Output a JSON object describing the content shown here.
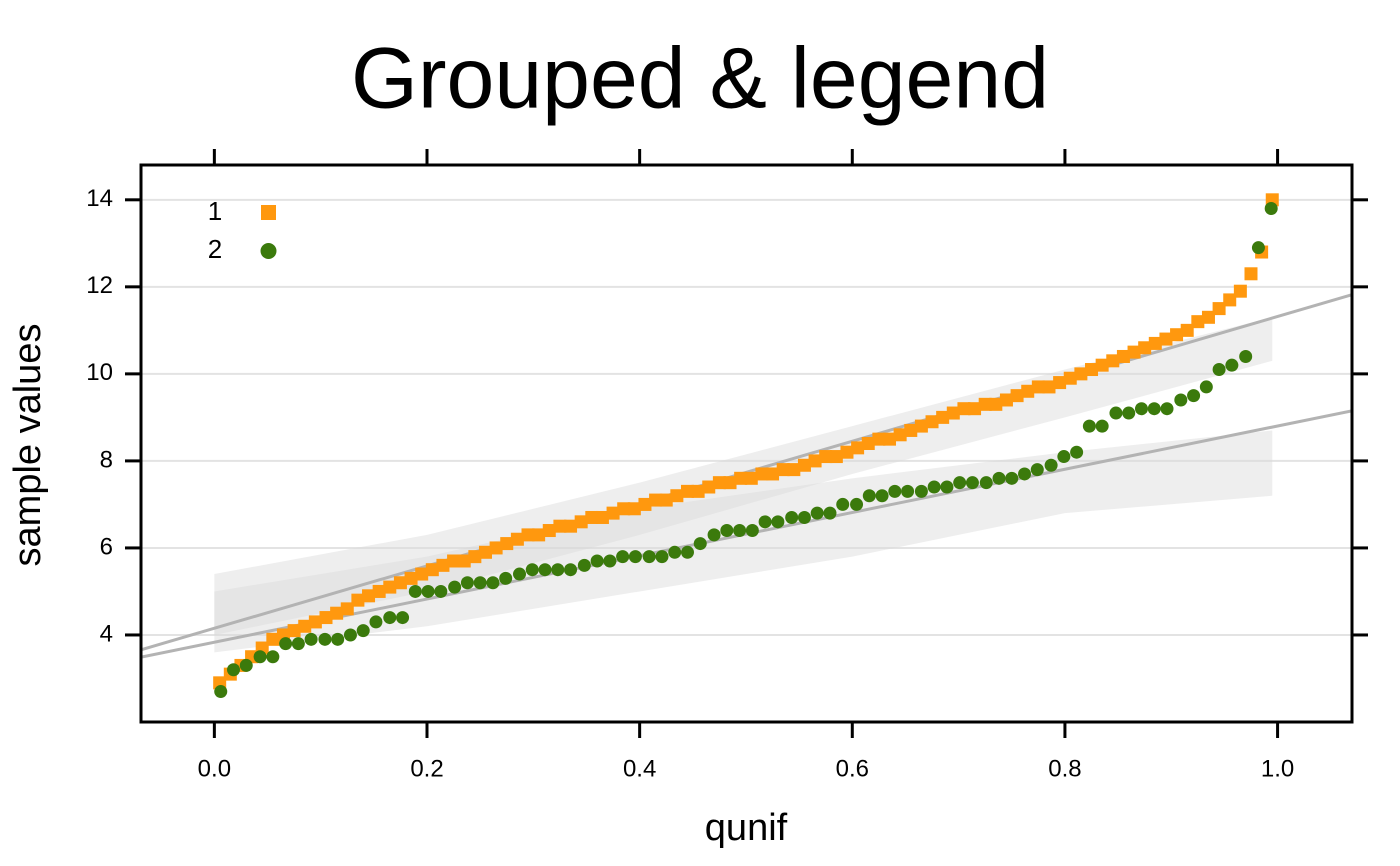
{
  "chart_data": {
    "type": "scatter",
    "title": "Grouped & legend",
    "x_label": "qunif",
    "y_label": "sample values",
    "xlim": [
      -0.069,
      1.07
    ],
    "ylim": [
      2,
      14.8
    ],
    "xticks": [
      {
        "value": 0,
        "label": "0.0"
      },
      0.2,
      0.4,
      0.6,
      0.8,
      {
        "value": 1,
        "label": "1.0"
      }
    ],
    "yticks": [
      4,
      6,
      8,
      10,
      12,
      14
    ],
    "grid": true,
    "legend": "top-left",
    "series": [
      {
        "name": "1",
        "color": "#ff980e",
        "marker": "square",
        "x": [
          0.005,
          0.015,
          0.025,
          0.035,
          0.045,
          0.055,
          0.065,
          0.075,
          0.085,
          0.095,
          0.105,
          0.115,
          0.125,
          0.135,
          0.145,
          0.155,
          0.165,
          0.175,
          0.185,
          0.195,
          0.205,
          0.215,
          0.225,
          0.235,
          0.245,
          0.255,
          0.265,
          0.275,
          0.285,
          0.295,
          0.305,
          0.315,
          0.325,
          0.335,
          0.345,
          0.355,
          0.365,
          0.375,
          0.385,
          0.395,
          0.405,
          0.415,
          0.425,
          0.435,
          0.445,
          0.455,
          0.465,
          0.475,
          0.485,
          0.495,
          0.505,
          0.515,
          0.525,
          0.535,
          0.545,
          0.555,
          0.565,
          0.575,
          0.585,
          0.595,
          0.605,
          0.615,
          0.625,
          0.635,
          0.645,
          0.655,
          0.665,
          0.675,
          0.685,
          0.695,
          0.705,
          0.715,
          0.725,
          0.735,
          0.745,
          0.755,
          0.765,
          0.775,
          0.785,
          0.795,
          0.805,
          0.815,
          0.825,
          0.835,
          0.845,
          0.855,
          0.865,
          0.875,
          0.885,
          0.895,
          0.905,
          0.915,
          0.925,
          0.935,
          0.945,
          0.955,
          0.965,
          0.975,
          0.985,
          0.995
        ],
        "values": [
          2.9,
          3.1,
          3.3,
          3.5,
          3.7,
          3.9,
          4.0,
          4.1,
          4.2,
          4.3,
          4.4,
          4.5,
          4.6,
          4.8,
          4.9,
          5.0,
          5.1,
          5.2,
          5.3,
          5.4,
          5.5,
          5.6,
          5.7,
          5.7,
          5.8,
          5.9,
          6.0,
          6.1,
          6.2,
          6.3,
          6.3,
          6.4,
          6.5,
          6.5,
          6.6,
          6.7,
          6.7,
          6.8,
          6.9,
          6.9,
          7.0,
          7.1,
          7.1,
          7.2,
          7.3,
          7.3,
          7.4,
          7.5,
          7.5,
          7.6,
          7.6,
          7.7,
          7.7,
          7.8,
          7.8,
          7.9,
          8.0,
          8.1,
          8.1,
          8.2,
          8.3,
          8.4,
          8.5,
          8.5,
          8.6,
          8.7,
          8.8,
          8.9,
          9.0,
          9.1,
          9.2,
          9.2,
          9.3,
          9.3,
          9.4,
          9.5,
          9.6,
          9.7,
          9.7,
          9.8,
          9.9,
          10.0,
          10.1,
          10.2,
          10.3,
          10.4,
          10.5,
          10.6,
          10.7,
          10.8,
          10.9,
          11.0,
          11.2,
          11.3,
          11.5,
          11.7,
          11.9,
          12.3,
          12.8,
          14.0
        ],
        "line": {
          "x": [
            -0.069,
            1.07
          ],
          "y": [
            3.66,
            11.82
          ]
        },
        "band": {
          "x": [
            0,
            0.2,
            0.4,
            0.6,
            0.8,
            0.995
          ],
          "upper": [
            5.4,
            6.3,
            7.5,
            8.8,
            10.1,
            11.3
          ],
          "lower": [
            4.0,
            5.0,
            6.3,
            7.7,
            9.0,
            10.3
          ]
        }
      },
      {
        "name": "2",
        "color": "#3b7a0c",
        "marker": "circle",
        "x": [
          0.006,
          0.018,
          0.03,
          0.043,
          0.055,
          0.067,
          0.079,
          0.091,
          0.104,
          0.116,
          0.128,
          0.14,
          0.152,
          0.165,
          0.177,
          0.189,
          0.201,
          0.213,
          0.226,
          0.238,
          0.25,
          0.262,
          0.274,
          0.287,
          0.299,
          0.311,
          0.323,
          0.335,
          0.348,
          0.36,
          0.372,
          0.384,
          0.396,
          0.409,
          0.421,
          0.433,
          0.445,
          0.457,
          0.47,
          0.482,
          0.494,
          0.506,
          0.518,
          0.53,
          0.543,
          0.555,
          0.567,
          0.579,
          0.591,
          0.604,
          0.616,
          0.628,
          0.64,
          0.652,
          0.665,
          0.677,
          0.689,
          0.701,
          0.713,
          0.726,
          0.738,
          0.75,
          0.762,
          0.774,
          0.787,
          0.799,
          0.811,
          0.823,
          0.835,
          0.848,
          0.86,
          0.872,
          0.884,
          0.896,
          0.909,
          0.921,
          0.933,
          0.945,
          0.957,
          0.97,
          0.982,
          0.994
        ],
        "values": [
          2.7,
          3.2,
          3.3,
          3.5,
          3.5,
          3.8,
          3.8,
          3.9,
          3.9,
          3.9,
          4.0,
          4.1,
          4.3,
          4.4,
          4.4,
          5.0,
          5.0,
          5.0,
          5.1,
          5.2,
          5.2,
          5.2,
          5.3,
          5.4,
          5.5,
          5.5,
          5.5,
          5.5,
          5.6,
          5.7,
          5.7,
          5.8,
          5.8,
          5.8,
          5.8,
          5.9,
          5.9,
          6.1,
          6.3,
          6.4,
          6.4,
          6.4,
          6.6,
          6.6,
          6.7,
          6.7,
          6.8,
          6.8,
          7.0,
          7.0,
          7.2,
          7.2,
          7.3,
          7.3,
          7.3,
          7.4,
          7.4,
          7.5,
          7.5,
          7.5,
          7.6,
          7.6,
          7.7,
          7.8,
          7.9,
          8.1,
          8.2,
          8.8,
          8.8,
          9.1,
          9.1,
          9.2,
          9.2,
          9.2,
          9.4,
          9.5,
          9.7,
          10.1,
          10.2,
          10.4,
          12.9,
          13.8
        ],
        "line": {
          "x": [
            -0.069,
            1.07
          ],
          "y": [
            3.49,
            9.15
          ]
        },
        "band": {
          "x": [
            0,
            0.2,
            0.4,
            0.6,
            0.8,
            0.995
          ],
          "upper": [
            5.0,
            5.8,
            6.9,
            7.6,
            8.2,
            8.7
          ],
          "lower": [
            3.6,
            4.2,
            5.0,
            5.8,
            6.8,
            7.2
          ]
        }
      }
    ]
  }
}
